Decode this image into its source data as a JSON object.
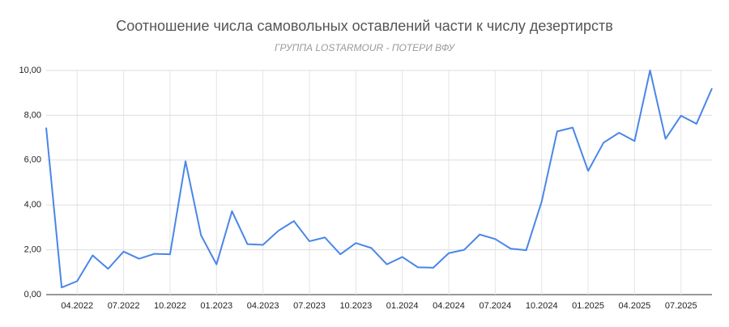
{
  "chart_data": {
    "type": "line",
    "title": "Соотношение числа самовольных оставлений части к числу дезертирств",
    "subtitle": "ГРУППА LOSTARMOUR - ПОТЕРИ ВФУ",
    "categories": [
      null,
      null,
      "04.2022",
      null,
      null,
      "07.2022",
      null,
      null,
      "10.2022",
      null,
      null,
      "01.2023",
      null,
      null,
      "04.2023",
      null,
      null,
      "07.2023",
      null,
      null,
      "10.2023",
      null,
      null,
      "01.2024",
      null,
      null,
      "04.2024",
      null,
      null,
      "07.2024",
      null,
      null,
      "10.2024",
      null,
      null,
      "01.2025",
      null,
      null,
      "04.2025",
      null,
      null,
      "07.2025",
      null,
      null
    ],
    "series": [
      {
        "color": "#4a86e8",
        "values": [
          7.45,
          0.32,
          0.6,
          1.75,
          1.15,
          1.92,
          1.6,
          1.82,
          1.8,
          5.95,
          2.65,
          1.35,
          3.72,
          2.25,
          2.22,
          2.85,
          3.28,
          2.38,
          2.55,
          1.8,
          2.3,
          2.08,
          1.35,
          1.68,
          1.22,
          1.2,
          1.85,
          2.0,
          2.68,
          2.48,
          2.05,
          1.98,
          4.15,
          7.28,
          7.45,
          5.52,
          6.78,
          7.22,
          6.85,
          10.0,
          6.95,
          7.98,
          7.62,
          9.2
        ]
      }
    ],
    "ylim": [
      0,
      10
    ],
    "yticks": [
      {
        "value": 0,
        "label": "0,00"
      },
      {
        "value": 2,
        "label": "2,00"
      },
      {
        "value": 4,
        "label": "4,00"
      },
      {
        "value": 6,
        "label": "6,00"
      },
      {
        "value": 8,
        "label": "8,00"
      },
      {
        "value": 10,
        "label": "10,00"
      }
    ],
    "grid": true
  }
}
